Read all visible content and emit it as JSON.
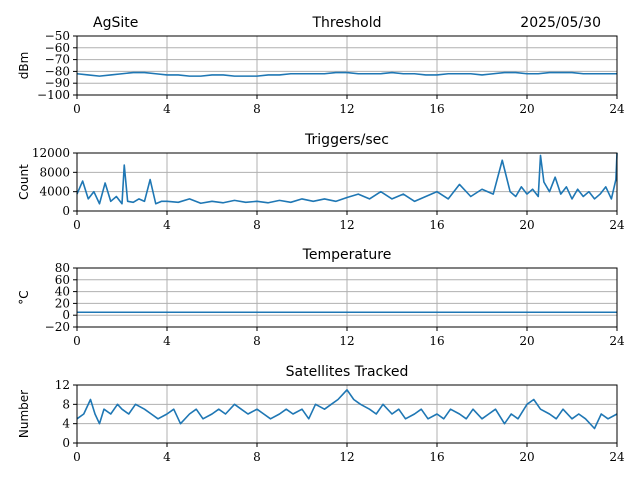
{
  "header": {
    "site": "AgSite",
    "date": "2025/05/30"
  },
  "style": {
    "line_color": "#1f77b4",
    "grid_color": "#b0b0b0"
  },
  "chart_data": [
    {
      "type": "line",
      "title": "Threshold",
      "ylabel": "dBm",
      "xlim": [
        0,
        24
      ],
      "ylim": [
        -100,
        -50
      ],
      "xticks": [
        0,
        4,
        8,
        12,
        16,
        20,
        24
      ],
      "yticks": [
        -100,
        -90,
        -80,
        -70,
        -60,
        -50
      ],
      "ytick_labels": [
        "−100",
        "−90",
        "−80",
        "−70",
        "−60",
        "−50"
      ],
      "grid": true,
      "series": [
        {
          "x": [
            0,
            0.5,
            1,
            1.5,
            2,
            2.5,
            3,
            3.5,
            4,
            4.5,
            5,
            5.5,
            6,
            6.5,
            7,
            7.5,
            8,
            8.5,
            9,
            9.5,
            10,
            10.5,
            11,
            11.5,
            12,
            12.5,
            13,
            13.5,
            14,
            14.5,
            15,
            15.5,
            16,
            16.5,
            17,
            17.5,
            18,
            18.5,
            19,
            19.5,
            20,
            20.5,
            21,
            21.5,
            22,
            22.5,
            23,
            23.5,
            24
          ],
          "y": [
            -82,
            -83,
            -84,
            -83,
            -82,
            -81,
            -81,
            -82,
            -83,
            -83,
            -84,
            -84,
            -83,
            -83,
            -84,
            -84,
            -84,
            -83,
            -83,
            -82,
            -82,
            -82,
            -82,
            -81,
            -81,
            -82,
            -82,
            -82,
            -81,
            -82,
            -82,
            -83,
            -83,
            -82,
            -82,
            -82,
            -83,
            -82,
            -81,
            -81,
            -82,
            -82,
            -81,
            -81,
            -81,
            -82,
            -82,
            -82,
            -82
          ]
        }
      ]
    },
    {
      "type": "line",
      "title": "Triggers/sec",
      "ylabel": "Count",
      "xlim": [
        0,
        24
      ],
      "ylim": [
        0,
        12000
      ],
      "xticks": [
        0,
        4,
        8,
        12,
        16,
        20,
        24
      ],
      "yticks": [
        0,
        4000,
        8000,
        12000
      ],
      "ytick_labels": [
        "0",
        "4000",
        "8000",
        "12000"
      ],
      "grid": true,
      "series": [
        {
          "x": [
            0,
            0.25,
            0.5,
            0.75,
            1,
            1.25,
            1.5,
            1.75,
            2,
            2.1,
            2.25,
            2.5,
            2.75,
            3,
            3.25,
            3.5,
            3.75,
            4,
            4.5,
            5,
            5.5,
            6,
            6.5,
            7,
            7.5,
            8,
            8.5,
            9,
            9.5,
            10,
            10.5,
            11,
            11.5,
            12,
            12.5,
            13,
            13.5,
            14,
            14.5,
            15,
            15.5,
            16,
            16.5,
            17,
            17.5,
            18,
            18.5,
            18.9,
            19.25,
            19.5,
            19.75,
            20,
            20.25,
            20.5,
            20.6,
            20.75,
            21,
            21.25,
            21.5,
            21.75,
            22,
            22.25,
            22.5,
            22.75,
            23,
            23.25,
            23.5,
            23.75,
            23.95,
            24
          ],
          "y": [
            3500,
            6200,
            2500,
            4000,
            1500,
            5800,
            2000,
            3000,
            1500,
            9500,
            2000,
            1800,
            2500,
            2000,
            6500,
            1500,
            2000,
            2000,
            1800,
            2500,
            1600,
            2000,
            1700,
            2200,
            1800,
            2000,
            1700,
            2200,
            1800,
            2500,
            2000,
            2500,
            2000,
            2800,
            3500,
            2500,
            4000,
            2500,
            3500,
            2000,
            3000,
            4000,
            2500,
            5500,
            3000,
            4500,
            3500,
            10500,
            4000,
            3000,
            5000,
            3500,
            4500,
            3000,
            11500,
            6000,
            4000,
            7000,
            3500,
            5000,
            2500,
            4500,
            3000,
            4000,
            2500,
            3500,
            5000,
            2500,
            6500,
            12000
          ]
        }
      ]
    },
    {
      "type": "line",
      "title": "Temperature",
      "ylabel": "°C",
      "xlim": [
        0,
        24
      ],
      "ylim": [
        -20,
        80
      ],
      "xticks": [
        0,
        4,
        8,
        12,
        16,
        20,
        24
      ],
      "yticks": [
        -20,
        0,
        20,
        40,
        60,
        80
      ],
      "ytick_labels": [
        "−20",
        "0",
        "20",
        "40",
        "60",
        "80"
      ],
      "grid": true,
      "series": [
        {
          "x": [
            0,
            24
          ],
          "y": [
            5,
            5
          ]
        }
      ]
    },
    {
      "type": "line",
      "title": "Satellites Tracked",
      "ylabel": "Number",
      "xlim": [
        0,
        24
      ],
      "ylim": [
        0,
        12
      ],
      "xticks": [
        0,
        4,
        8,
        12,
        16,
        20,
        24
      ],
      "yticks": [
        0,
        4,
        8,
        12
      ],
      "ytick_labels": [
        "0",
        "4",
        "8",
        "12"
      ],
      "grid": true,
      "series": [
        {
          "x": [
            0,
            0.3,
            0.6,
            0.8,
            1,
            1.2,
            1.5,
            1.8,
            2,
            2.3,
            2.6,
            3,
            3.3,
            3.6,
            4,
            4.3,
            4.6,
            5,
            5.3,
            5.6,
            6,
            6.3,
            6.6,
            7,
            7.3,
            7.6,
            8,
            8.3,
            8.6,
            9,
            9.3,
            9.6,
            10,
            10.3,
            10.6,
            11,
            11.3,
            11.6,
            11.8,
            12,
            12.3,
            12.6,
            13,
            13.3,
            13.6,
            14,
            14.3,
            14.6,
            15,
            15.3,
            15.6,
            16,
            16.3,
            16.6,
            17,
            17.3,
            17.6,
            18,
            18.3,
            18.6,
            19,
            19.3,
            19.6,
            20,
            20.3,
            20.6,
            21,
            21.3,
            21.6,
            22,
            22.3,
            22.6,
            23,
            23.3,
            23.6,
            24
          ],
          "y": [
            5,
            6,
            9,
            6,
            4,
            7,
            6,
            8,
            7,
            6,
            8,
            7,
            6,
            5,
            6,
            7,
            4,
            6,
            7,
            5,
            6,
            7,
            6,
            8,
            7,
            6,
            7,
            6,
            5,
            6,
            7,
            6,
            7,
            5,
            8,
            7,
            8,
            9,
            10,
            11,
            9,
            8,
            7,
            6,
            8,
            6,
            7,
            5,
            6,
            7,
            5,
            6,
            5,
            7,
            6,
            5,
            7,
            5,
            6,
            7,
            4,
            6,
            5,
            8,
            9,
            7,
            6,
            5,
            7,
            5,
            6,
            5,
            3,
            6,
            5,
            6
          ]
        }
      ]
    }
  ]
}
